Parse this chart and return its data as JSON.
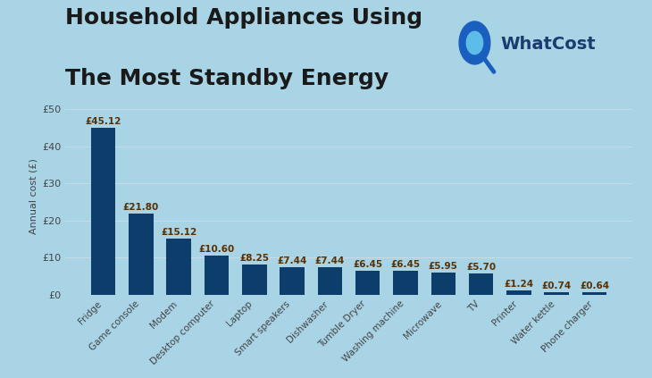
{
  "categories": [
    "Fridge",
    "Game console",
    "Modem",
    "Desktop computer",
    "Laptop",
    "Smart speakers",
    "Dishwasher",
    "Tumble Dryer",
    "Washing machine",
    "Microwave",
    "TV",
    "Printer",
    "Water kettle",
    "Phone charger"
  ],
  "values": [
    45.12,
    21.8,
    15.12,
    10.6,
    8.25,
    7.44,
    7.44,
    6.45,
    6.45,
    5.95,
    5.7,
    1.24,
    0.74,
    0.64
  ],
  "bar_color": "#0d3d6b",
  "background_color": "#a8d4e6",
  "title_line1": "Household Appliances Using",
  "title_line2": "The Most Standby Energy",
  "ylabel": "Annual cost (£)",
  "ytick_labels": [
    "£0",
    "£10",
    "£20",
    "£30",
    "£40",
    "£50"
  ],
  "ytick_values": [
    0,
    10,
    20,
    30,
    40,
    50
  ],
  "ylim": [
    0,
    53
  ],
  "title_fontsize": 18,
  "value_label_fontsize": 7.5,
  "value_label_color": "#5a3000",
  "axis_label_fontsize": 8,
  "ytick_fontsize": 8,
  "xtick_fontsize": 7.5,
  "grid_color": "#c5dce8",
  "whatcost_text": "WhatCost",
  "whatcost_color": "#1a3c6e",
  "whatcost_icon_outer": "#1a5fbd",
  "whatcost_icon_inner": "#5bbde8",
  "whatcost_fontsize": 14
}
